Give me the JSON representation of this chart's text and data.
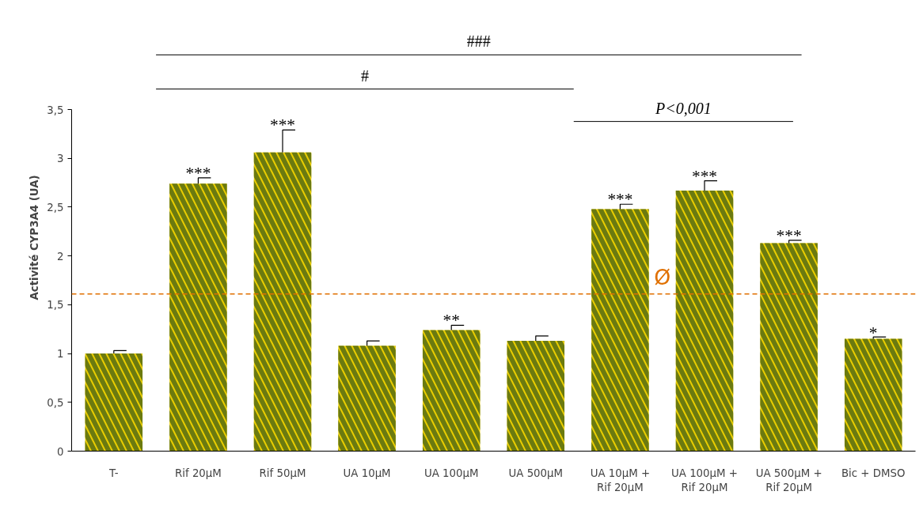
{
  "chart_data": {
    "type": "bar",
    "ylabel": "Activité CYP3A4 (UA)",
    "categories": [
      "T-",
      "Rif 20µM",
      "Rif 50µM",
      "UA 10µM",
      "UA 100µM",
      "UA 500µM",
      "UA 10µM +\nRif 20µM",
      "UA 100µM +\nRif 20µM",
      "UA 500µM +\nRif 20µM",
      "Bic + DMSO"
    ],
    "values": [
      1.0,
      2.74,
      3.06,
      1.08,
      1.24,
      1.13,
      2.48,
      2.67,
      2.13,
      1.15
    ],
    "errors": [
      [
        1.0,
        1.03
      ],
      [
        2.74,
        2.8
      ],
      [
        3.06,
        3.29
      ],
      [
        1.08,
        1.13
      ],
      [
        1.24,
        1.29
      ],
      [
        1.13,
        1.18
      ],
      [
        2.48,
        2.53
      ],
      [
        2.67,
        2.77
      ],
      [
        2.13,
        2.16
      ],
      [
        1.15,
        1.17
      ]
    ],
    "color": "#e8cc00",
    "ylim": [
      0,
      3.5
    ],
    "yticks": [
      0,
      {
        "value": 0.5,
        "label": "0,5"
      },
      1,
      {
        "value": 1.5,
        "label": "1,5"
      },
      2,
      {
        "value": 2.5,
        "label": "2,5"
      },
      3,
      {
        "value": 3.5,
        "label": "3,5"
      }
    ],
    "grid": false,
    "ref_lines": [
      {
        "axis": "y",
        "value": 1.61,
        "label": "Ø",
        "color": "#e07000",
        "line_style": "dashed"
      }
    ],
    "annotations": [
      {
        "text": "***",
        "x": "Rif 20µM",
        "y": 2.8
      },
      {
        "text": "***",
        "x": "Rif 50µM",
        "y": 3.29
      },
      {
        "text": "**",
        "x": "UA 100µM",
        "y": 1.29
      },
      {
        "text": "***",
        "x": "UA 10µM +\nRif 20µM",
        "y": 2.53
      },
      {
        "text": "***",
        "x": "UA 100µM +\nRif 20µM",
        "y": 2.77
      },
      {
        "text": "***",
        "x": "UA 500µM +\nRif 20µM",
        "y": 2.16
      },
      {
        "text": "*",
        "x": "Bic + DMSO",
        "y": 1.16
      },
      "###",
      "#",
      "P<0,001"
    ]
  }
}
